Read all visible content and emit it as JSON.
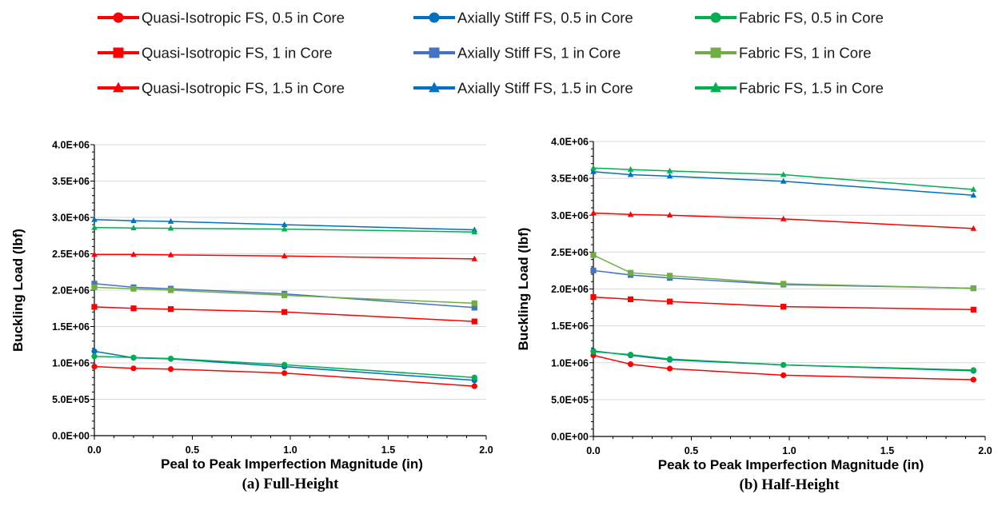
{
  "legend": [
    {
      "label": "Quasi-Isotropic FS, 0.5 in Core",
      "color": "#ff0000",
      "marker": "circle"
    },
    {
      "label": "Axially Stiff FS, 0.5 in Core",
      "color": "#0070c0",
      "marker": "circle"
    },
    {
      "label": "Fabric FS, 0.5 in Core",
      "color": "#00b050",
      "marker": "circle"
    },
    {
      "label": "Quasi-Isotropic FS, 1 in Core",
      "color": "#ff0000",
      "marker": "square"
    },
    {
      "label": "Axially Stiff FS, 1 in Core",
      "color": "#4472c4",
      "marker": "square"
    },
    {
      "label": "Fabric FS, 1 in Core",
      "color": "#70ad47",
      "marker": "square"
    },
    {
      "label": "Quasi-Isotropic FS, 1.5 in Core",
      "color": "#ff0000",
      "marker": "triangle"
    },
    {
      "label": "Axially Stiff FS, 1.5 in Core",
      "color": "#0070c0",
      "marker": "triangle"
    },
    {
      "label": "Fabric FS, 1.5 in Core",
      "color": "#00b050",
      "marker": "triangle"
    }
  ],
  "chart_data": [
    {
      "type": "line",
      "caption": "(a)   Full-Height",
      "xlabel": "Peal to Peak Imperfection Magnitude (in)",
      "ylabel": "Buckling Load (lbf)",
      "xlim": [
        0,
        2.0
      ],
      "ylim": [
        0,
        4000000
      ],
      "xticks": [
        "0.0",
        "0.5",
        "1.0",
        "1.5",
        "2.0"
      ],
      "yticks": [
        "0.0E+00",
        "5.0E+05",
        "1.0E+06",
        "1.5E+06",
        "2.0E+06",
        "2.5E+06",
        "3.0E+06",
        "3.5E+06",
        "4.0E+06"
      ],
      "grid": "horizontal",
      "x": [
        0,
        0.2,
        0.39,
        0.97,
        1.94
      ],
      "series": [
        {
          "name": "Quasi-Isotropic FS, 0.5 in Core",
          "values": [
            950000,
            925000,
            915000,
            860000,
            680000
          ]
        },
        {
          "name": "Axially Stiff FS, 0.5 in Core",
          "values": [
            1160000,
            1070000,
            1055000,
            950000,
            760000
          ]
        },
        {
          "name": "Fabric FS, 0.5 in Core",
          "values": [
            1090000,
            1075000,
            1060000,
            975000,
            800000
          ]
        },
        {
          "name": "Quasi-Isotropic FS, 1 in Core",
          "values": [
            1770000,
            1750000,
            1740000,
            1700000,
            1570000
          ]
        },
        {
          "name": "Axially Stiff FS, 1 in Core",
          "values": [
            2090000,
            2040000,
            2020000,
            1950000,
            1760000
          ]
        },
        {
          "name": "Fabric FS, 1 in Core",
          "values": [
            2040000,
            2020000,
            2000000,
            1930000,
            1820000
          ]
        },
        {
          "name": "Quasi-Isotropic FS, 1.5 in Core",
          "values": [
            2490000,
            2490000,
            2485000,
            2470000,
            2430000
          ]
        },
        {
          "name": "Axially Stiff FS, 1.5 in Core",
          "values": [
            2970000,
            2955000,
            2945000,
            2900000,
            2830000
          ]
        },
        {
          "name": "Fabric FS, 1.5 in Core",
          "values": [
            2860000,
            2855000,
            2850000,
            2840000,
            2800000
          ]
        }
      ]
    },
    {
      "type": "line",
      "caption": "(b) Half-Height",
      "xlabel": "Peak to Peak Imperfection Magnitude (in)",
      "ylabel": "Buckling Load (lbf)",
      "xlim": [
        0,
        2.0
      ],
      "ylim": [
        0,
        4000000
      ],
      "xticks": [
        "0.0",
        "0.5",
        "1.0",
        "1.5",
        "2.0"
      ],
      "yticks": [
        "0.0E+00",
        "5.0E+05",
        "1.0E+06",
        "1.5E+06",
        "2.0E+06",
        "2.5E+06",
        "3.0E+06",
        "3.5E+06",
        "4.0E+06"
      ],
      "grid": "horizontal",
      "x": [
        0,
        0.19,
        0.39,
        0.97,
        1.94
      ],
      "series": [
        {
          "name": "Quasi-Isotropic FS, 0.5 in Core",
          "values": [
            1100000,
            980000,
            920000,
            830000,
            770000
          ]
        },
        {
          "name": "Axially Stiff FS, 0.5 in Core",
          "values": [
            1160000,
            1100000,
            1040000,
            970000,
            890000
          ]
        },
        {
          "name": "Fabric FS, 0.5 in Core",
          "values": [
            1150000,
            1110000,
            1050000,
            970000,
            900000
          ]
        },
        {
          "name": "Quasi-Isotropic FS, 1 in Core",
          "values": [
            1890000,
            1860000,
            1830000,
            1760000,
            1720000
          ]
        },
        {
          "name": "Axially Stiff FS, 1 in Core",
          "values": [
            2250000,
            2190000,
            2150000,
            2060000,
            2010000
          ]
        },
        {
          "name": "Fabric FS, 1 in Core",
          "values": [
            2460000,
            2220000,
            2180000,
            2070000,
            2010000
          ]
        },
        {
          "name": "Quasi-Isotropic FS, 1.5 in Core",
          "values": [
            3030000,
            3010000,
            3000000,
            2950000,
            2820000
          ]
        },
        {
          "name": "Axially Stiff FS, 1.5 in Core",
          "values": [
            3590000,
            3550000,
            3530000,
            3460000,
            3270000
          ]
        },
        {
          "name": "Fabric FS, 1.5 in Core",
          "values": [
            3640000,
            3620000,
            3600000,
            3550000,
            3350000
          ]
        }
      ]
    }
  ]
}
